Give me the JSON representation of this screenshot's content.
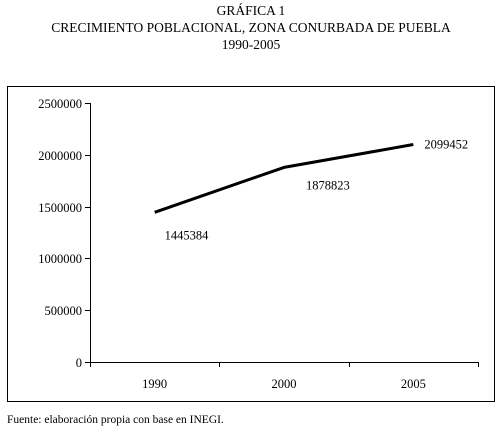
{
  "header": {
    "label": "GRÁFICA 1",
    "title": "CRECIMIENTO POBLACIONAL, ZONA CONURBADA DE PUEBLA",
    "period": "1990-2005"
  },
  "source": "Fuente: elaboración propia con base en INEGI.",
  "chart_data": {
    "type": "line",
    "title": "CRECIMIENTO POBLACIONAL, ZONA CONURBADA DE PUEBLA",
    "categories": [
      "1990",
      "2000",
      "2005"
    ],
    "y_ticks": [
      "0",
      "500000",
      "1000000",
      "1500000",
      "2000000",
      "2500000"
    ],
    "ylim": [
      0,
      2500000
    ],
    "series": [
      {
        "values": [
          1445384,
          1878823,
          2099452
        ],
        "labels": [
          "1445384",
          "1878823",
          "2099452"
        ]
      }
    ],
    "grid": false,
    "legend": "none",
    "line_color": "#000000",
    "border_color": "#000000"
  }
}
